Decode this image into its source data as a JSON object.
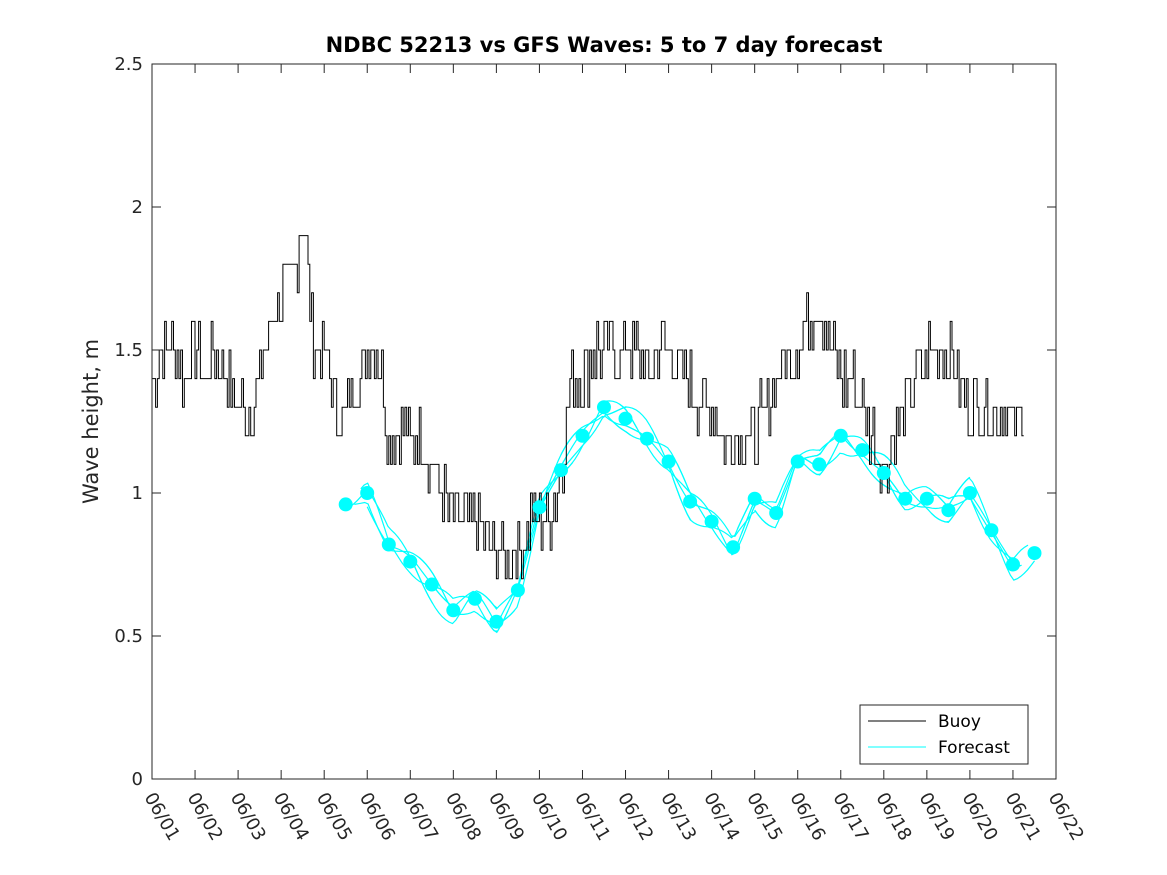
{
  "chart_data": {
    "type": "line",
    "title": "NDBC 52213 vs GFS Waves: 5 to 7 day forecast",
    "xlabel": "",
    "ylabel": "Wave height, m",
    "xlim": [
      "06/01",
      "06/22"
    ],
    "ylim": [
      0,
      2.5
    ],
    "x_ticks": [
      "06/01",
      "06/02",
      "06/03",
      "06/04",
      "06/05",
      "06/06",
      "06/07",
      "06/08",
      "06/09",
      "06/10",
      "06/11",
      "06/12",
      "06/13",
      "06/14",
      "06/15",
      "06/16",
      "06/17",
      "06/18",
      "06/19",
      "06/20",
      "06/21",
      "06/22"
    ],
    "y_ticks": [
      "0",
      "0.5",
      "1",
      "1.5",
      "2",
      "2.5"
    ],
    "grid": false,
    "legend_position": "bottom-right",
    "colors": {
      "buoy": "#000000",
      "forecast": "#00ffff",
      "axes": "#262626"
    },
    "series": [
      {
        "name": "Buoy",
        "x": [
          "06/01",
          "06/01 06:00",
          "06/01 12:00",
          "06/01 18:00",
          "06/02",
          "06/02 06:00",
          "06/02 12:00",
          "06/02 18:00",
          "06/03",
          "06/03 06:00",
          "06/03 12:00",
          "06/03 18:00",
          "06/04",
          "06/04 06:00",
          "06/04 12:00",
          "06/04 18:00",
          "06/05",
          "06/05 06:00",
          "06/05 12:00",
          "06/05 18:00",
          "06/06",
          "06/06 06:00",
          "06/06 12:00",
          "06/06 18:00",
          "06/07",
          "06/07 06:00",
          "06/07 12:00",
          "06/07 18:00",
          "06/08",
          "06/08 06:00",
          "06/08 12:00",
          "06/08 18:00",
          "06/09",
          "06/09 06:00",
          "06/09 12:00",
          "06/09 18:00",
          "06/10",
          "06/10 06:00",
          "06/10 12:00",
          "06/10 18:00",
          "06/11",
          "06/11 06:00",
          "06/11 12:00",
          "06/11 18:00",
          "06/12",
          "06/12 06:00",
          "06/12 12:00",
          "06/12 18:00",
          "06/13",
          "06/13 06:00",
          "06/13 12:00",
          "06/13 18:00",
          "06/14",
          "06/14 06:00",
          "06/14 12:00",
          "06/14 18:00",
          "06/15",
          "06/15 06:00",
          "06/15 12:00",
          "06/15 18:00",
          "06/16",
          "06/16 06:00",
          "06/16 12:00",
          "06/16 18:00",
          "06/17",
          "06/17 06:00",
          "06/17 12:00",
          "06/17 18:00",
          "06/18",
          "06/18 06:00",
          "06/18 12:00",
          "06/18 18:00",
          "06/19",
          "06/19 06:00",
          "06/19 12:00",
          "06/19 18:00",
          "06/20",
          "06/20 06:00",
          "06/20 12:00",
          "06/20 18:00",
          "06/21",
          "06/21 06:00"
        ],
        "values": [
          1.4,
          1.5,
          1.5,
          1.4,
          1.5,
          1.4,
          1.5,
          1.4,
          1.3,
          1.3,
          1.4,
          1.6,
          1.7,
          1.7,
          2.0,
          1.5,
          1.5,
          1.3,
          1.3,
          1.4,
          1.5,
          1.5,
          1.2,
          1.2,
          1.2,
          1.2,
          1.1,
          1.0,
          0.9,
          0.9,
          0.9,
          0.8,
          0.8,
          0.8,
          0.8,
          0.9,
          0.9,
          0.9,
          1.1,
          1.4,
          1.4,
          1.5,
          1.5,
          1.5,
          1.5,
          1.5,
          1.4,
          1.5,
          1.5,
          1.4,
          1.4,
          1.3,
          1.3,
          1.2,
          1.2,
          1.2,
          1.2,
          1.3,
          1.4,
          1.5,
          1.5,
          1.6,
          1.7,
          1.5,
          1.4,
          1.4,
          1.3,
          1.2,
          1.1,
          1.2,
          1.3,
          1.4,
          1.5,
          1.5,
          1.5,
          1.4,
          1.3,
          1.3,
          1.3,
          1.3,
          1.2,
          1.3
        ]
      },
      {
        "name": "Forecast",
        "x": [
          "06/05 12:00",
          "06/06",
          "06/06 12:00",
          "06/07",
          "06/07 12:00",
          "06/08",
          "06/08 12:00",
          "06/09",
          "06/09 12:00",
          "06/10",
          "06/10 12:00",
          "06/11",
          "06/11 12:00",
          "06/12",
          "06/12 12:00",
          "06/13",
          "06/13 12:00",
          "06/14",
          "06/14 12:00",
          "06/15",
          "06/15 12:00",
          "06/16",
          "06/16 12:00",
          "06/17",
          "06/17 12:00",
          "06/18",
          "06/18 12:00",
          "06/19",
          "06/19 12:00",
          "06/20",
          "06/20 12:00",
          "06/21",
          "06/21 12:00"
        ],
        "values": [
          0.96,
          1.0,
          0.82,
          0.76,
          0.68,
          0.59,
          0.63,
          0.55,
          0.66,
          0.95,
          1.08,
          1.2,
          1.3,
          1.26,
          1.19,
          1.11,
          0.97,
          0.9,
          0.81,
          0.98,
          0.93,
          1.11,
          1.1,
          1.2,
          1.15,
          1.07,
          0.98,
          0.98,
          0.94,
          1.0,
          0.87,
          0.75,
          0.79
        ]
      }
    ]
  }
}
